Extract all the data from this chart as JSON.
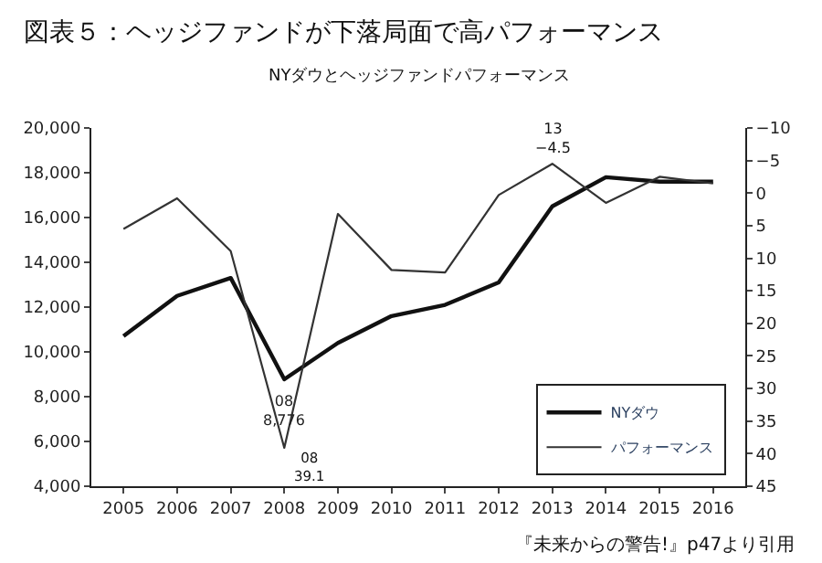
{
  "chart_data": {
    "type": "line",
    "title": "図表５：ヘッジファンドが下落局面で高パフォーマンス",
    "subtitle": "NYダウとヘッジファンドパフォーマンス",
    "categories": [
      "2005",
      "2006",
      "2007",
      "2008",
      "2009",
      "2010",
      "2011",
      "2012",
      "2013",
      "2014",
      "2015",
      "2016"
    ],
    "series": [
      {
        "name": "NYダウ",
        "color": "#111111",
        "values": [
          10700,
          12500,
          13300,
          8776,
          10400,
          11600,
          12100,
          13100,
          16500,
          17800,
          17600,
          17600
        ]
      },
      {
        "name": "パフォーマンス",
        "color": "#333333",
        "axis": "y2",
        "values": [
          5.5,
          0.8,
          8.9,
          39.1,
          3.2,
          11.8,
          12.2,
          0.3,
          -4.5,
          1.5,
          -2.5,
          -1.5
        ]
      }
    ],
    "ylim": [
      4000,
      20000
    ],
    "yticks": [
      {
        "value": 4000,
        "label": "4,000"
      },
      {
        "value": 6000,
        "label": "6,000"
      },
      {
        "value": 8000,
        "label": "8,000"
      },
      {
        "value": 10000,
        "label": "10,000"
      },
      {
        "value": 12000,
        "label": "12,000"
      },
      {
        "value": 14000,
        "label": "14,000"
      },
      {
        "value": 16000,
        "label": "16,000"
      },
      {
        "value": 18000,
        "label": "18,000"
      },
      {
        "value": 20000,
        "label": "20,000"
      }
    ],
    "y2lim": [
      45,
      -10
    ],
    "y2ticks": [
      {
        "value": -10,
        "label": "−10"
      },
      {
        "value": -5,
        "label": "−5"
      },
      0,
      5,
      10,
      15,
      20,
      25,
      30,
      35,
      40,
      45
    ],
    "annotations": [
      {
        "text": "08\n8,776",
        "x": "2008",
        "y": 8776
      },
      "08\n39.1",
      "13\n−4.5",
      "『未来からの警告!』p47より引用"
    ],
    "legend": "bottom right",
    "marker": "none",
    "line_style": "solid"
  }
}
